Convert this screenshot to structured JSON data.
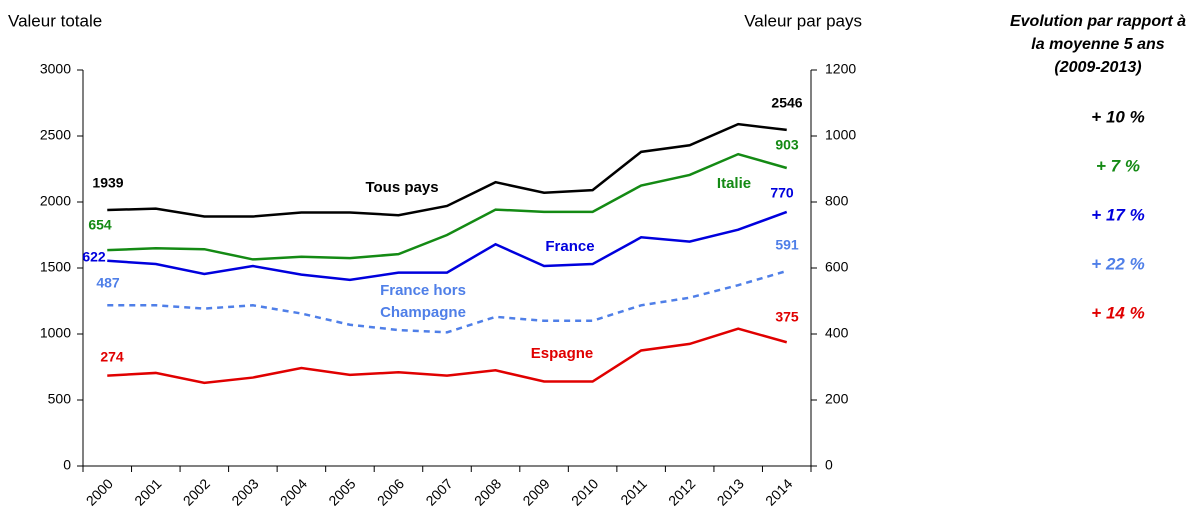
{
  "chart_data": {
    "type": "line",
    "y_label": "Valeur totale",
    "y2_label": "Valeur par pays",
    "categories": [
      "2000",
      "2001",
      "2002",
      "2003",
      "2004",
      "2005",
      "2006",
      "2007",
      "2008",
      "2009",
      "2010",
      "2011",
      "2012",
      "2013",
      "2014"
    ],
    "ylim": [
      0,
      3000
    ],
    "yticks": [
      0,
      500,
      1000,
      1500,
      2000,
      2500,
      3000
    ],
    "y2lim": [
      0,
      1200
    ],
    "y2ticks": [
      0,
      200,
      400,
      600,
      800,
      1000,
      1200
    ],
    "series": [
      {
        "name": "Tous pays",
        "color": "#000000",
        "axis": "y",
        "dashed": false,
        "values": [
          1939,
          1950,
          1890,
          1890,
          1920,
          1920,
          1900,
          1970,
          2150,
          2070,
          2090,
          2380,
          2430,
          2590,
          2546
        ]
      },
      {
        "name": "Italie",
        "color": "#148a14",
        "axis": "y2",
        "dashed": false,
        "values": [
          654,
          660,
          657,
          626,
          634,
          630,
          642,
          700,
          777,
          770,
          770,
          850,
          882,
          945,
          903
        ]
      },
      {
        "name": "France",
        "color": "#0000dd",
        "axis": "y2",
        "dashed": false,
        "values": [
          622,
          612,
          582,
          606,
          580,
          564,
          586,
          586,
          672,
          606,
          612,
          693,
          680,
          716,
          770
        ]
      },
      {
        "name": "France hors Champagne",
        "color": "#4f7fe8",
        "axis": "y2",
        "dashed": true,
        "values": [
          487,
          487,
          477,
          487,
          462,
          428,
          412,
          405,
          452,
          440,
          440,
          487,
          510,
          548,
          591
        ]
      },
      {
        "name": "Espagne",
        "color": "#e00000",
        "axis": "y2",
        "dashed": false,
        "values": [
          274,
          282,
          252,
          268,
          297,
          276,
          284,
          274,
          290,
          256,
          256,
          350,
          370,
          416,
          375
        ]
      }
    ]
  },
  "side_panel": {
    "title_lines": [
      "Evolution par rapport à",
      "la moyenne 5 ans",
      "(2009-2013)"
    ],
    "items": [
      {
        "text": "+ 10 %",
        "color": "#000000"
      },
      {
        "text": "+ 7 %",
        "color": "#148a14"
      },
      {
        "text": "+ 17 %",
        "color": "#0000dd"
      },
      {
        "text": "+ 22 %",
        "color": "#4f7fe8"
      },
      {
        "text": "+ 14 %",
        "color": "#e00000"
      }
    ]
  }
}
